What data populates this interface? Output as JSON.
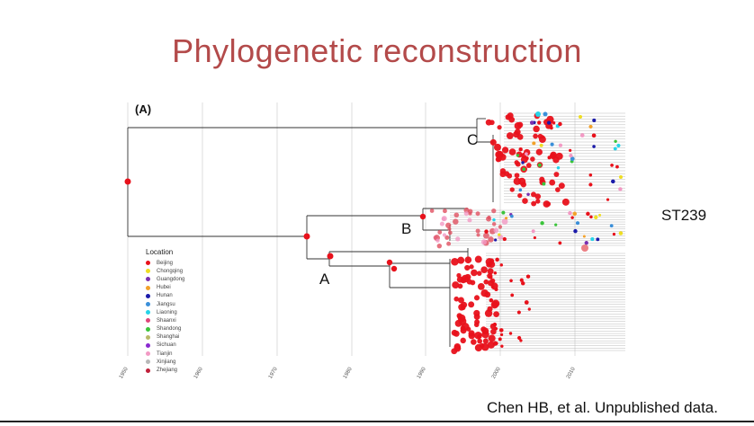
{
  "title": "Phylogenetic reconstruction",
  "panel_label": "(A)",
  "clade_labels": [
    {
      "id": "c",
      "text": "C"
    },
    {
      "id": "b",
      "text": "B"
    },
    {
      "id": "a",
      "text": "A"
    }
  ],
  "st_label": "ST239",
  "legend": {
    "title": "Location",
    "items": [
      {
        "label": "Beijing",
        "color": "#e8111b"
      },
      {
        "label": "Chongqing",
        "color": "#eedd22"
      },
      {
        "label": "Guangdong",
        "color": "#7a2fb0"
      },
      {
        "label": "Hubei",
        "color": "#f2a12a"
      },
      {
        "label": "Hunan",
        "color": "#1b1baa"
      },
      {
        "label": "Jiangsu",
        "color": "#3a8fd9"
      },
      {
        "label": "Liaoning",
        "color": "#27d3e8"
      },
      {
        "label": "Shaanxi",
        "color": "#e0457a"
      },
      {
        "label": "Shandong",
        "color": "#3bc43b"
      },
      {
        "label": "Shanghai",
        "color": "#b9b96a"
      },
      {
        "label": "Sichuan",
        "color": "#8a2ad0"
      },
      {
        "label": "Tianjin",
        "color": "#f29ac4"
      },
      {
        "label": "Xinjiang",
        "color": "#b8b8b8"
      },
      {
        "label": "Zhejiang",
        "color": "#c0203a"
      }
    ]
  },
  "axis": {
    "ticks": [
      "1950",
      "1960",
      "1970",
      "1980",
      "1990",
      "2000",
      "2010"
    ]
  },
  "citation": "Chen HB, et al. Unpublished data."
}
